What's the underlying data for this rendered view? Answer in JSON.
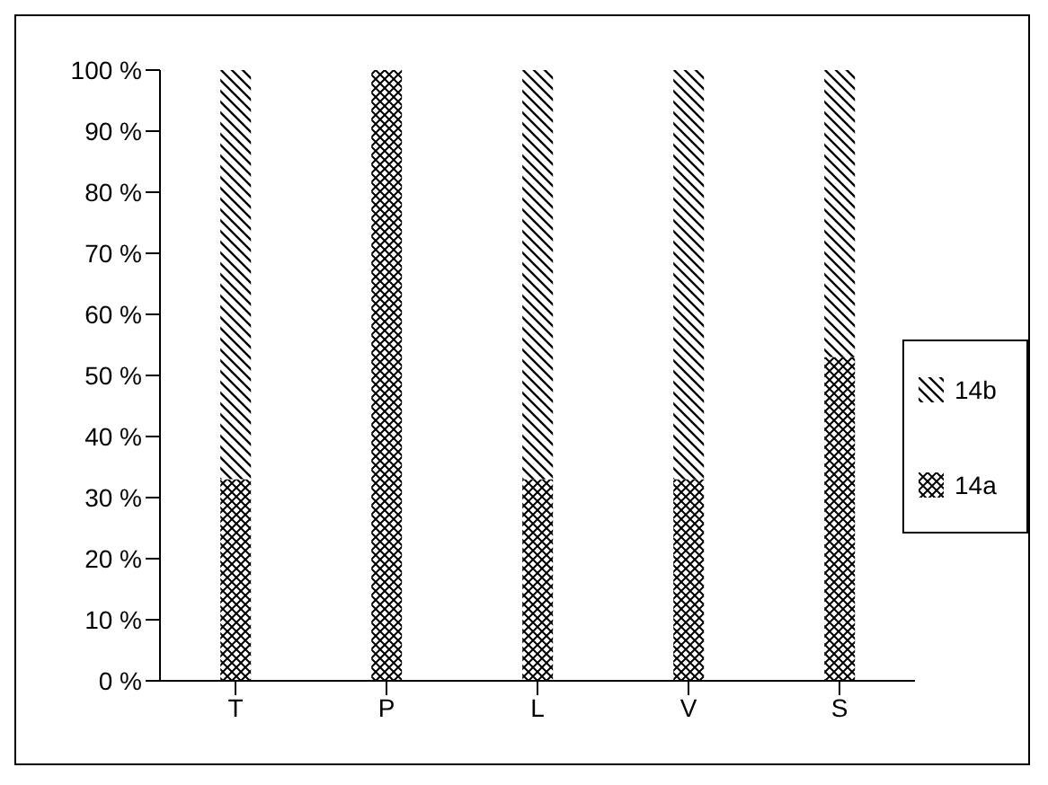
{
  "chart_data": {
    "type": "bar",
    "stacked": true,
    "categories": [
      "T",
      "P",
      "L",
      "V",
      "S"
    ],
    "series": [
      {
        "name": "14a",
        "color": "#000000",
        "values": [
          33,
          100,
          33,
          33,
          53
        ]
      },
      {
        "name": "14b",
        "color": "#000000",
        "values": [
          67,
          0,
          67,
          67,
          47
        ]
      }
    ],
    "ylim": [
      0,
      100
    ],
    "yticks": [
      {
        "value": 0,
        "label": "0 %"
      },
      {
        "value": 10,
        "label": "10 %"
      },
      {
        "value": 20,
        "label": "20 %"
      },
      {
        "value": 30,
        "label": "30 %"
      },
      {
        "value": 40,
        "label": "40 %"
      },
      {
        "value": 50,
        "label": "50 %"
      },
      {
        "value": 60,
        "label": "60 %"
      },
      {
        "value": 70,
        "label": "70 %"
      },
      {
        "value": 80,
        "label": "80 %"
      },
      {
        "value": 90,
        "label": "90 %"
      },
      {
        "value": 100,
        "label": "100 %"
      }
    ],
    "grid": false,
    "legend": "right"
  }
}
